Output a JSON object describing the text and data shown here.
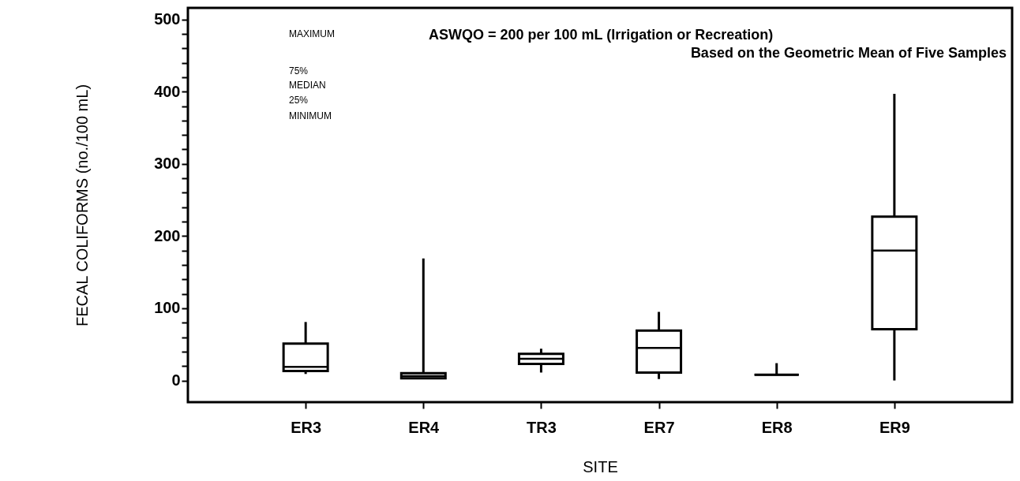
{
  "chart_data": {
    "type": "box",
    "categories": [
      "ER3",
      "ER4",
      "TR3",
      "ER7",
      "ER8",
      "ER9"
    ],
    "boxes": [
      {
        "low": 9,
        "q1": 13,
        "median": 19,
        "q3": 51,
        "high": 81
      },
      {
        "low": 2,
        "q1": 3,
        "median": 6,
        "q3": 10,
        "high": 169
      },
      {
        "low": 11,
        "q1": 23,
        "median": 30,
        "q3": 37,
        "high": 44
      },
      {
        "low": 2,
        "q1": 11,
        "median": 45,
        "q3": 69,
        "high": 95
      },
      {
        "low": 8,
        "q1": 8,
        "median": 8,
        "q3": 8,
        "high": 24
      },
      {
        "low": 0,
        "q1": 71,
        "median": 180,
        "q3": 227,
        "high": 397
      }
    ],
    "xlabel": "SITE",
    "ylabel": "FECAL COLIFORMS (no./100 mL)",
    "ylim": [
      -30,
      516
    ],
    "yticks": [
      0,
      {
        "value": 20,
        "label": null
      },
      {
        "value": 40,
        "label": null
      },
      {
        "value": 60,
        "label": null
      },
      {
        "value": 80,
        "label": null
      },
      100,
      {
        "value": 120,
        "label": null
      },
      {
        "value": 140,
        "label": null
      },
      {
        "value": 160,
        "label": null
      },
      {
        "value": 180,
        "label": null
      },
      200,
      {
        "value": 220,
        "label": null
      },
      {
        "value": 240,
        "label": null
      },
      {
        "value": 260,
        "label": null
      },
      {
        "value": 280,
        "label": null
      },
      300,
      {
        "value": 320,
        "label": null
      },
      {
        "value": 340,
        "label": null
      },
      {
        "value": 360,
        "label": null
      },
      {
        "value": 380,
        "label": null
      },
      400,
      {
        "value": 420,
        "label": null
      },
      {
        "value": 440,
        "label": null
      },
      {
        "value": 460,
        "label": null
      },
      {
        "value": 480,
        "label": null
      },
      500
    ],
    "annotations": [
      "ASWQO = 200 per 100 mL (Irrigation or Recreation)",
      "Based on the Geometric Mean of Five Samples",
      "MAXIMUM",
      "75%",
      "MEDIAN",
      "25%",
      "MINIMUM"
    ]
  }
}
